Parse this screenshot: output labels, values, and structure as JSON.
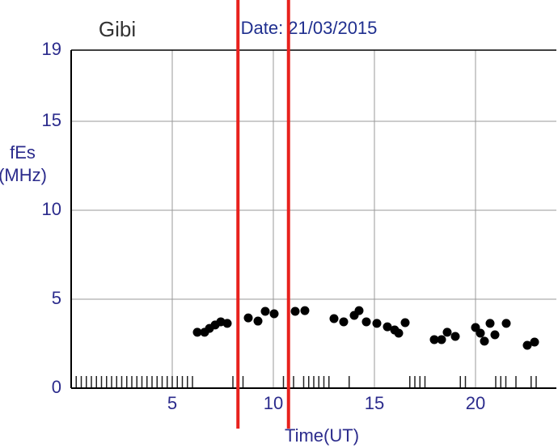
{
  "chart_data": {
    "type": "scatter",
    "station": "Gibi",
    "title": "Date: 21/03/2015",
    "xlabel": "Time(UT)",
    "ylabel": [
      "fEs",
      "(MHz)"
    ],
    "x": [
      6.24,
      6.6,
      6.84,
      7.12,
      7.4,
      7.72,
      8.76,
      9.24,
      9.6,
      10.04,
      11.08,
      11.56,
      13.0,
      13.48,
      14.0,
      14.24,
      14.6,
      15.12,
      15.64,
      16.0,
      16.2,
      16.52,
      17.96,
      18.32,
      18.6,
      19.0,
      20.0,
      20.24,
      20.44,
      20.72,
      20.96,
      21.52,
      22.56,
      22.92
    ],
    "series": [
      {
        "color": "#000000",
        "values": [
          3.14,
          3.14,
          3.36,
          3.55,
          3.73,
          3.64,
          3.95,
          3.77,
          4.32,
          4.18,
          4.32,
          4.36,
          3.91,
          3.73,
          4.09,
          4.36,
          3.73,
          3.64,
          3.45,
          3.27,
          3.09,
          3.68,
          2.73,
          2.73,
          3.14,
          2.91,
          3.41,
          3.09,
          2.64,
          3.64,
          3.0,
          3.64,
          2.41,
          2.59
        ]
      }
    ],
    "vlines": {
      "color": "#e8211d",
      "values": [
        8.25,
        10.75
      ]
    },
    "rug": [
      0.25,
      0.5,
      0.75,
      1.0,
      1.25,
      1.5,
      1.75,
      2.0,
      2.25,
      2.5,
      2.75,
      3.0,
      3.25,
      3.5,
      3.75,
      4.0,
      4.25,
      4.5,
      4.75,
      5.0,
      5.25,
      5.5,
      5.75,
      6.0,
      8.0,
      8.25,
      8.5,
      10.5,
      10.75,
      11.0,
      11.5,
      11.75,
      12.0,
      12.25,
      12.5,
      12.75,
      13.75,
      16.75,
      17.0,
      17.25,
      17.5,
      19.25,
      19.5,
      21.0,
      21.25,
      21.5,
      22.0,
      22.75,
      23.0
    ],
    "xlim": [
      0,
      24
    ],
    "ylim": [
      0,
      19
    ],
    "xticks": [
      5,
      10,
      15,
      20
    ],
    "yticks": [
      0,
      5,
      10,
      15,
      19
    ],
    "grid": true
  }
}
